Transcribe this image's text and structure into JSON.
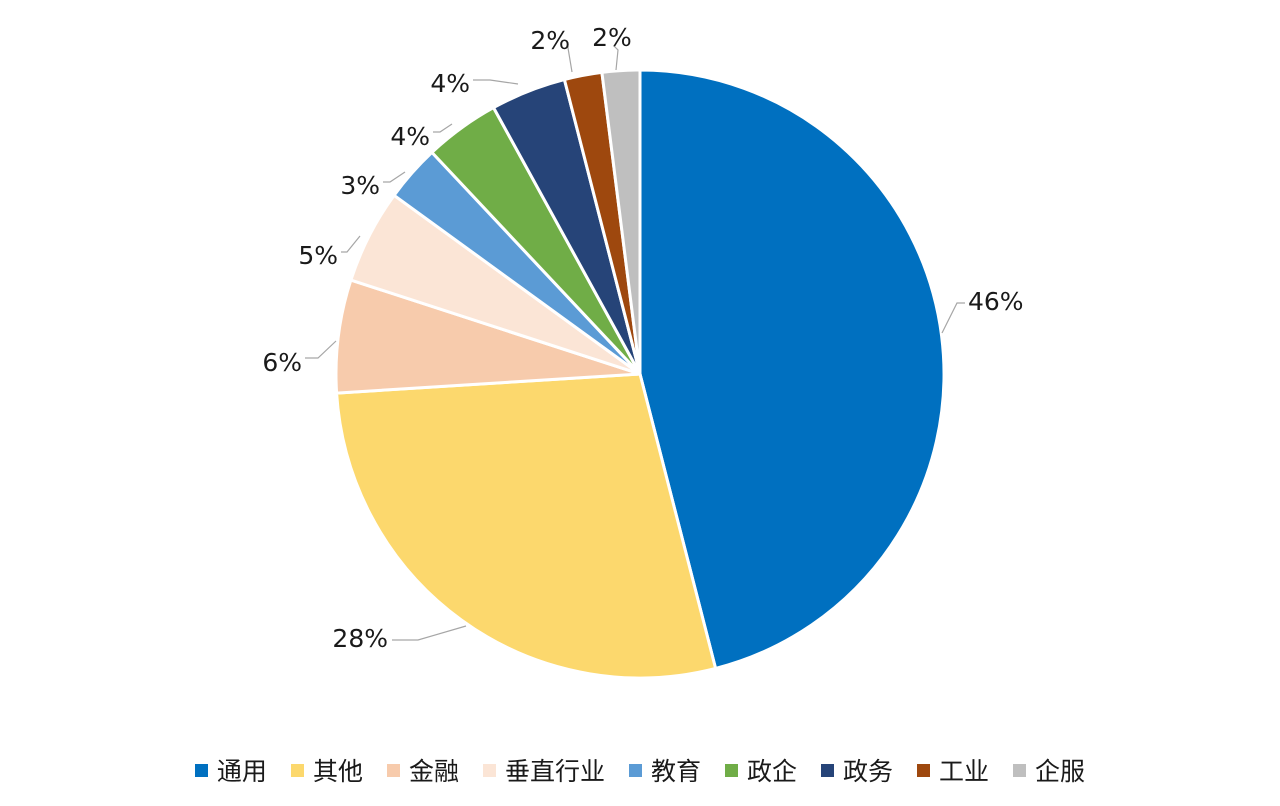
{
  "chart_data": {
    "type": "pie",
    "title": "",
    "start_angle": "12 o'clock",
    "direction": "clockwise",
    "legend_position": "bottom",
    "slices": [
      {
        "label": "通用",
        "value": 46,
        "display": "46%",
        "color": "#0070C0"
      },
      {
        "label": "其他",
        "value": 28,
        "display": "28%",
        "color": "#FCD86D"
      },
      {
        "label": "金融",
        "value": 6,
        "display": "6%",
        "color": "#F7CBAC"
      },
      {
        "label": "垂直行业",
        "value": 5,
        "display": "5%",
        "color": "#FBE5D6"
      },
      {
        "label": "教育",
        "value": 3,
        "display": "3%",
        "color": "#5B9BD5"
      },
      {
        "label": "政企",
        "value": 4,
        "display": "4%",
        "color": "#70AD47"
      },
      {
        "label": "政务",
        "value": 4,
        "display": "4%",
        "color": "#264478"
      },
      {
        "label": "工业",
        "value": 2,
        "display": "2%",
        "color": "#9E480E"
      },
      {
        "label": "企服",
        "value": 2,
        "display": "2%",
        "color": "#BFBFBF"
      }
    ]
  }
}
